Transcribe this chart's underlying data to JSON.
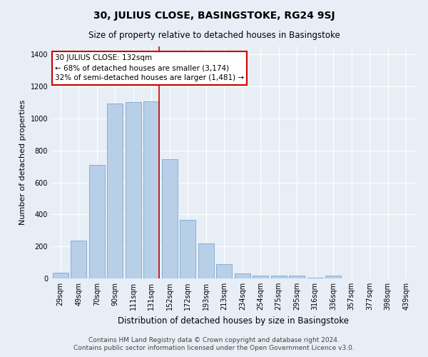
{
  "title": "30, JULIUS CLOSE, BASINGSTOKE, RG24 9SJ",
  "subtitle": "Size of property relative to detached houses in Basingstoke",
  "xlabel": "Distribution of detached houses by size in Basingstoke",
  "ylabel": "Number of detached properties",
  "bar_labels": [
    "29sqm",
    "49sqm",
    "70sqm",
    "90sqm",
    "111sqm",
    "131sqm",
    "152sqm",
    "172sqm",
    "193sqm",
    "213sqm",
    "234sqm",
    "254sqm",
    "275sqm",
    "295sqm",
    "316sqm",
    "336sqm",
    "357sqm",
    "377sqm",
    "398sqm",
    "439sqm"
  ],
  "bar_values": [
    35,
    235,
    710,
    1095,
    1100,
    1105,
    745,
    365,
    220,
    90,
    32,
    18,
    20,
    18,
    5,
    18,
    0,
    0,
    0,
    0
  ],
  "bar_color": "#b8cfe8",
  "bar_edge_color": "#7aa8d0",
  "highlight_index": 5,
  "highlight_color": "#cc0000",
  "ylim": [
    0,
    1450
  ],
  "yticks": [
    0,
    200,
    400,
    600,
    800,
    1000,
    1200,
    1400
  ],
  "annotation_text": "30 JULIUS CLOSE: 132sqm\n← 68% of detached houses are smaller (3,174)\n32% of semi-detached houses are larger (1,481) →",
  "annotation_box_color": "#ffffff",
  "annotation_box_edge": "#cc0000",
  "footer_line1": "Contains HM Land Registry data © Crown copyright and database right 2024.",
  "footer_line2": "Contains public sector information licensed under the Open Government Licence v3.0.",
  "bg_color": "#e8eef5",
  "plot_bg_color": "#e8eef5",
  "grid_color": "#ffffff",
  "title_fontsize": 10,
  "subtitle_fontsize": 8.5,
  "xlabel_fontsize": 8.5,
  "ylabel_fontsize": 8,
  "tick_fontsize": 7,
  "footer_fontsize": 6.5,
  "annotation_fontsize": 7.5
}
